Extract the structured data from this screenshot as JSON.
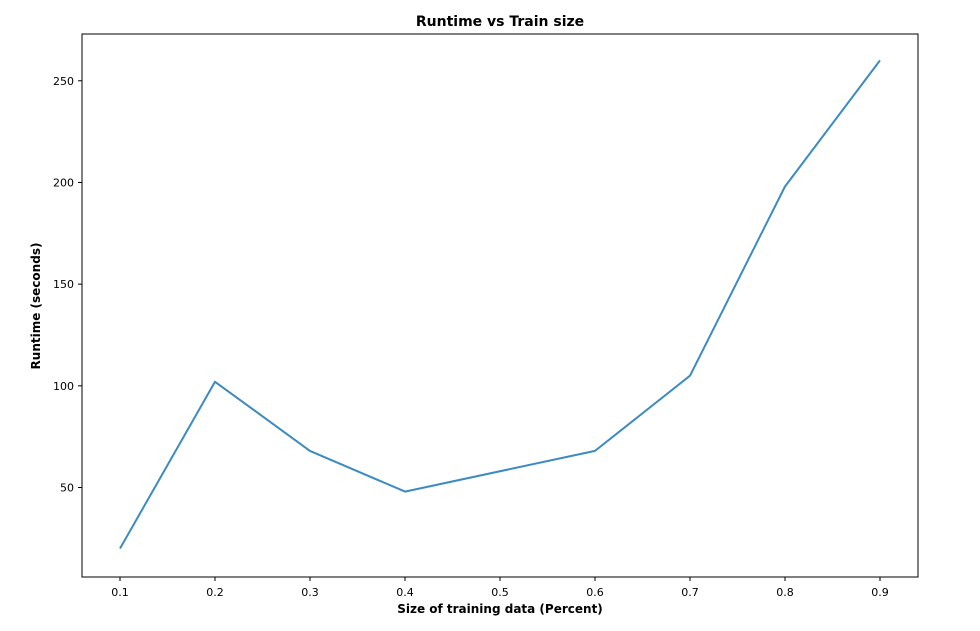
{
  "chart_data": {
    "type": "line",
    "title": "Runtime vs Train size",
    "xlabel": "Size of training data (Percent)",
    "ylabel": "Runtime (seconds)",
    "xlim": [
      0.06,
      0.94
    ],
    "ylim": [
      6,
      273
    ],
    "xticks": [
      0.1,
      0.2,
      0.3,
      0.4,
      0.5,
      0.6,
      0.7,
      0.8,
      0.9
    ],
    "xtick_labels": [
      "0.1",
      "0.2",
      "0.3",
      "0.4",
      "0.5",
      "0.6",
      "0.7",
      "0.8",
      "0.9"
    ],
    "yticks": [
      50,
      100,
      150,
      200,
      250
    ],
    "ytick_labels": [
      "50",
      "100",
      "150",
      "200",
      "250"
    ],
    "grid": false,
    "line_color": "#3b8bc2",
    "series": [
      {
        "x": [
          0.1,
          0.2,
          0.3,
          0.4,
          0.6,
          0.7,
          0.8,
          0.9
        ],
        "y": [
          20,
          102,
          68,
          48,
          68,
          105,
          198,
          260
        ]
      }
    ]
  }
}
